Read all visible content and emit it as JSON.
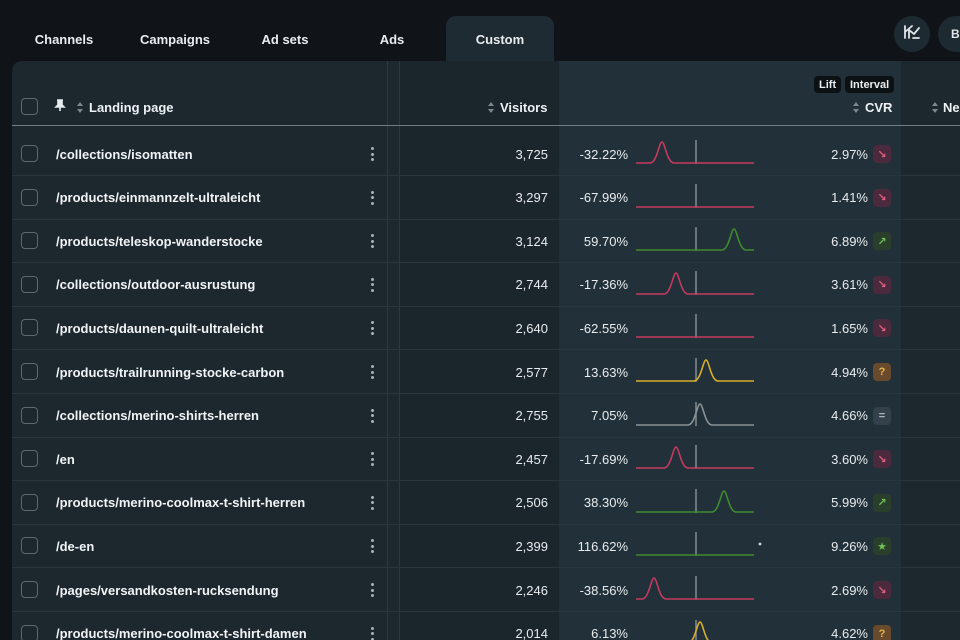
{
  "tabs": [
    {
      "label": "Channels",
      "active": false
    },
    {
      "label": "Campaigns",
      "active": false
    },
    {
      "label": "Ad sets",
      "active": false
    },
    {
      "label": "Ads",
      "active": false
    },
    {
      "label": "Custom",
      "active": true
    }
  ],
  "toolbar": {
    "logo_icon": "brand-logo-icon",
    "cut_button_label": "B"
  },
  "table": {
    "columns": {
      "landing_page": "Landing page",
      "visitors": "Visitors",
      "cvr": "CVR",
      "next_col": "Ne"
    },
    "chips": {
      "lift": "Lift",
      "interval": "Interval"
    },
    "icons": {
      "pin": "pin-icon",
      "row_menu": "kebab-menu-icon"
    },
    "rows": [
      {
        "page": "/collections/isomatten",
        "visitors": "3,725",
        "lift": "-32.22%",
        "cvr": "2.97%",
        "trend": "down"
      },
      {
        "page": "/products/einmannzelt-ultraleicht",
        "visitors": "3,297",
        "lift": "-67.99%",
        "cvr": "1.41%",
        "trend": "down"
      },
      {
        "page": "/products/teleskop-wanderstocke",
        "visitors": "3,124",
        "lift": "59.70%",
        "cvr": "6.89%",
        "trend": "up"
      },
      {
        "page": "/collections/outdoor-ausrustung",
        "visitors": "2,744",
        "lift": "-17.36%",
        "cvr": "3.61%",
        "trend": "down"
      },
      {
        "page": "/products/daunen-quilt-ultraleicht",
        "visitors": "2,640",
        "lift": "-62.55%",
        "cvr": "1.65%",
        "trend": "down"
      },
      {
        "page": "/products/trailrunning-stocke-carbon",
        "visitors": "2,577",
        "lift": "13.63%",
        "cvr": "4.94%",
        "trend": "unsure"
      },
      {
        "page": "/collections/merino-shirts-herren",
        "visitors": "2,755",
        "lift": "7.05%",
        "cvr": "4.66%",
        "trend": "neutral"
      },
      {
        "page": "/en",
        "visitors": "2,457",
        "lift": "-17.69%",
        "cvr": "3.60%",
        "trend": "down"
      },
      {
        "page": "/products/merino-coolmax-t-shirt-herren",
        "visitors": "2,506",
        "lift": "38.30%",
        "cvr": "5.99%",
        "trend": "up"
      },
      {
        "page": "/de-en",
        "visitors": "2,399",
        "lift": "116.62%",
        "cvr": "9.26%",
        "trend": "star"
      },
      {
        "page": "/pages/versandkosten-rucksendung",
        "visitors": "2,246",
        "lift": "-38.56%",
        "cvr": "2.69%",
        "trend": "down"
      },
      {
        "page": "/products/merino-coolmax-t-shirt-damen",
        "visitors": "2,014",
        "lift": "6.13%",
        "cvr": "4.62%",
        "trend": "unsure"
      }
    ]
  },
  "colors": {
    "negative": "#c43a5f",
    "positive": "#3f8a2e",
    "uncertain": "#d9ad2b",
    "neutral": "#8a9296",
    "badge_down_bg": "#4a2a3c",
    "badge_up_bg": "#2a3e2c",
    "badge_unsure_bg": "#6a4a2c",
    "badge_neutral_bg": "#34404a"
  }
}
